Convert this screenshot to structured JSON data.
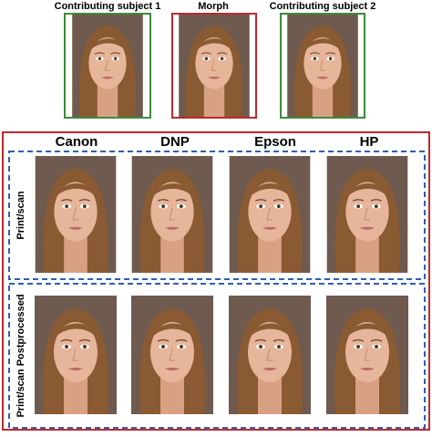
{
  "top_row": {
    "labels": [
      "Contributing subject 1",
      "Morph",
      "Contributing subject 2"
    ]
  },
  "columns": [
    "Canon",
    "DNP",
    "Epson",
    "HP"
  ],
  "rows": [
    "Print/scan",
    "Print/scan Postprocessed"
  ]
}
